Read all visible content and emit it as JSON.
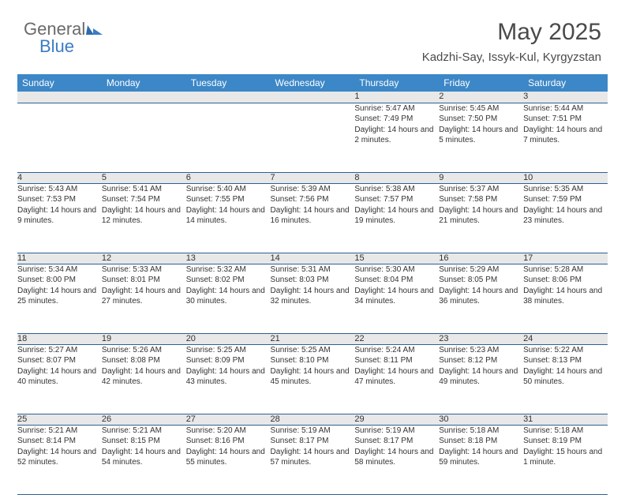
{
  "logo": {
    "text1": "General",
    "text2": "Blue"
  },
  "title": "May 2025",
  "subtitle": "Kadzhi-Say, Issyk-Kul, Kyrgyzstan",
  "colors": {
    "header_bg": "#3c87c7",
    "header_text": "#ffffff",
    "daynum_bg": "#e8e8e8",
    "border": "#2f5f94",
    "text": "#333333",
    "title": "#4a4a4a",
    "logo_gray": "#6a6a6a",
    "logo_blue": "#3a7cc4"
  },
  "days_of_week": [
    "Sunday",
    "Monday",
    "Tuesday",
    "Wednesday",
    "Thursday",
    "Friday",
    "Saturday"
  ],
  "weeks": [
    {
      "nums": [
        "",
        "",
        "",
        "",
        "1",
        "2",
        "3"
      ],
      "cells": [
        null,
        null,
        null,
        null,
        {
          "sunrise": "5:47 AM",
          "sunset": "7:49 PM",
          "daylight": "14 hours and 2 minutes."
        },
        {
          "sunrise": "5:45 AM",
          "sunset": "7:50 PM",
          "daylight": "14 hours and 5 minutes."
        },
        {
          "sunrise": "5:44 AM",
          "sunset": "7:51 PM",
          "daylight": "14 hours and 7 minutes."
        }
      ]
    },
    {
      "nums": [
        "4",
        "5",
        "6",
        "7",
        "8",
        "9",
        "10"
      ],
      "cells": [
        {
          "sunrise": "5:43 AM",
          "sunset": "7:53 PM",
          "daylight": "14 hours and 9 minutes."
        },
        {
          "sunrise": "5:41 AM",
          "sunset": "7:54 PM",
          "daylight": "14 hours and 12 minutes."
        },
        {
          "sunrise": "5:40 AM",
          "sunset": "7:55 PM",
          "daylight": "14 hours and 14 minutes."
        },
        {
          "sunrise": "5:39 AM",
          "sunset": "7:56 PM",
          "daylight": "14 hours and 16 minutes."
        },
        {
          "sunrise": "5:38 AM",
          "sunset": "7:57 PM",
          "daylight": "14 hours and 19 minutes."
        },
        {
          "sunrise": "5:37 AM",
          "sunset": "7:58 PM",
          "daylight": "14 hours and 21 minutes."
        },
        {
          "sunrise": "5:35 AM",
          "sunset": "7:59 PM",
          "daylight": "14 hours and 23 minutes."
        }
      ]
    },
    {
      "nums": [
        "11",
        "12",
        "13",
        "14",
        "15",
        "16",
        "17"
      ],
      "cells": [
        {
          "sunrise": "5:34 AM",
          "sunset": "8:00 PM",
          "daylight": "14 hours and 25 minutes."
        },
        {
          "sunrise": "5:33 AM",
          "sunset": "8:01 PM",
          "daylight": "14 hours and 27 minutes."
        },
        {
          "sunrise": "5:32 AM",
          "sunset": "8:02 PM",
          "daylight": "14 hours and 30 minutes."
        },
        {
          "sunrise": "5:31 AM",
          "sunset": "8:03 PM",
          "daylight": "14 hours and 32 minutes."
        },
        {
          "sunrise": "5:30 AM",
          "sunset": "8:04 PM",
          "daylight": "14 hours and 34 minutes."
        },
        {
          "sunrise": "5:29 AM",
          "sunset": "8:05 PM",
          "daylight": "14 hours and 36 minutes."
        },
        {
          "sunrise": "5:28 AM",
          "sunset": "8:06 PM",
          "daylight": "14 hours and 38 minutes."
        }
      ]
    },
    {
      "nums": [
        "18",
        "19",
        "20",
        "21",
        "22",
        "23",
        "24"
      ],
      "cells": [
        {
          "sunrise": "5:27 AM",
          "sunset": "8:07 PM",
          "daylight": "14 hours and 40 minutes."
        },
        {
          "sunrise": "5:26 AM",
          "sunset": "8:08 PM",
          "daylight": "14 hours and 42 minutes."
        },
        {
          "sunrise": "5:25 AM",
          "sunset": "8:09 PM",
          "daylight": "14 hours and 43 minutes."
        },
        {
          "sunrise": "5:25 AM",
          "sunset": "8:10 PM",
          "daylight": "14 hours and 45 minutes."
        },
        {
          "sunrise": "5:24 AM",
          "sunset": "8:11 PM",
          "daylight": "14 hours and 47 minutes."
        },
        {
          "sunrise": "5:23 AM",
          "sunset": "8:12 PM",
          "daylight": "14 hours and 49 minutes."
        },
        {
          "sunrise": "5:22 AM",
          "sunset": "8:13 PM",
          "daylight": "14 hours and 50 minutes."
        }
      ]
    },
    {
      "nums": [
        "25",
        "26",
        "27",
        "28",
        "29",
        "30",
        "31"
      ],
      "cells": [
        {
          "sunrise": "5:21 AM",
          "sunset": "8:14 PM",
          "daylight": "14 hours and 52 minutes."
        },
        {
          "sunrise": "5:21 AM",
          "sunset": "8:15 PM",
          "daylight": "14 hours and 54 minutes."
        },
        {
          "sunrise": "5:20 AM",
          "sunset": "8:16 PM",
          "daylight": "14 hours and 55 minutes."
        },
        {
          "sunrise": "5:19 AM",
          "sunset": "8:17 PM",
          "daylight": "14 hours and 57 minutes."
        },
        {
          "sunrise": "5:19 AM",
          "sunset": "8:17 PM",
          "daylight": "14 hours and 58 minutes."
        },
        {
          "sunrise": "5:18 AM",
          "sunset": "8:18 PM",
          "daylight": "14 hours and 59 minutes."
        },
        {
          "sunrise": "5:18 AM",
          "sunset": "8:19 PM",
          "daylight": "15 hours and 1 minute."
        }
      ]
    }
  ],
  "labels": {
    "sunrise": "Sunrise:",
    "sunset": "Sunset:",
    "daylight": "Daylight:"
  }
}
